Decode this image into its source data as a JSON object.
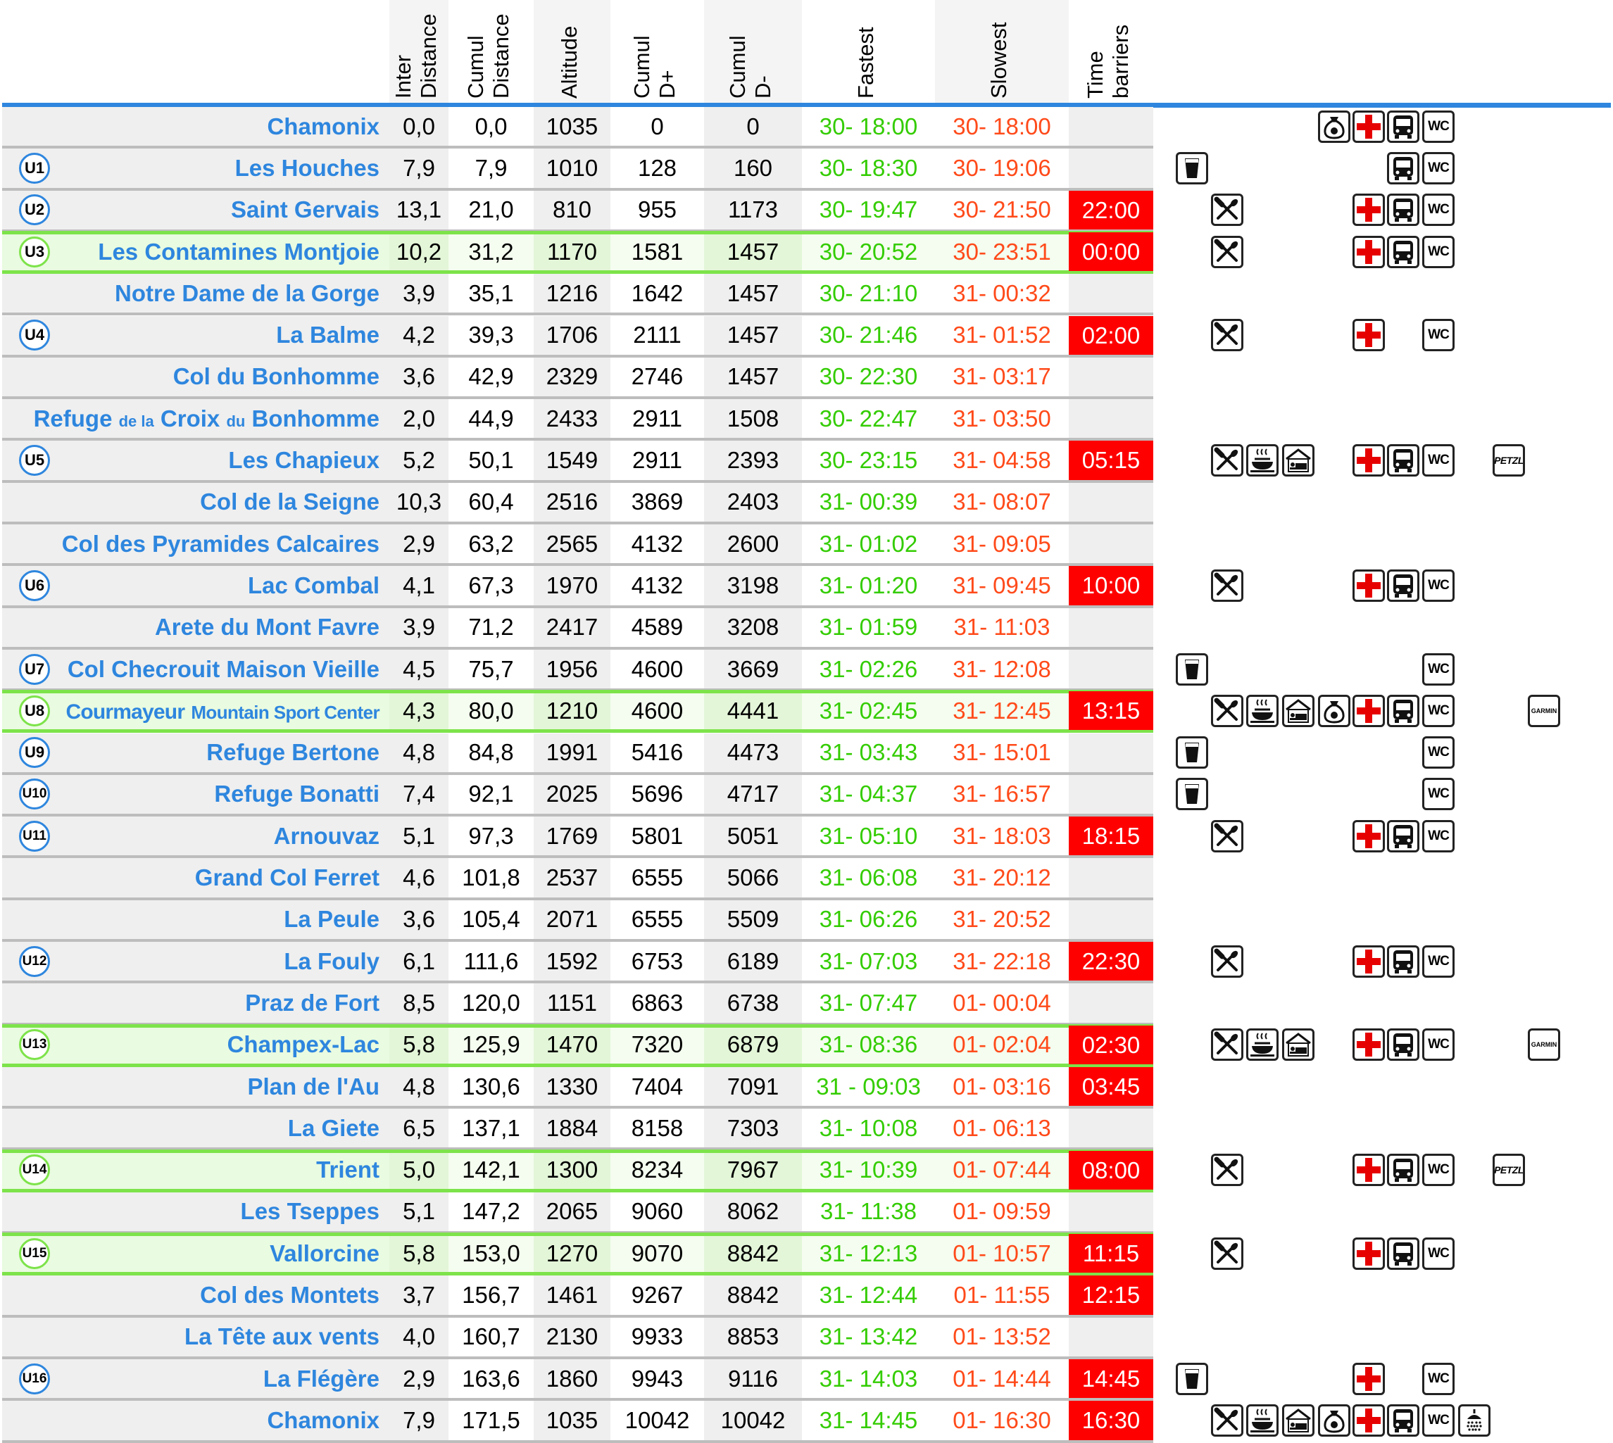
{
  "headers": {
    "inter": [
      "Inter",
      "Distance"
    ],
    "cumul_dist": [
      "Cumul",
      "Distance"
    ],
    "altitude": [
      "Altitude"
    ],
    "cumul_dplus": [
      "Cumul",
      "D+"
    ],
    "cumul_dminus": [
      "Cumul",
      "D-"
    ],
    "fastest": [
      "Fastest"
    ],
    "slowest": [
      "Slowest"
    ],
    "barriers": [
      "Time",
      "barriers"
    ]
  },
  "colors": {
    "place_text": "#2e86de",
    "fastest_text": "#33cc00",
    "slowest_text": "#ff4a1a",
    "barrier_bg": "#ff0000",
    "green_line": "#7de34a"
  },
  "rows": [
    {
      "badge": "",
      "place": "Chamonix",
      "inter": "0,0",
      "cumul": "0,0",
      "alt": "1035",
      "dplus": "0",
      "dminus": "0",
      "fast": "30- 18:00",
      "slow": "30- 18:00",
      "barrier": "",
      "services": [
        "bag-icon",
        "first-aid-icon",
        "bus-icon",
        "wc-icon"
      ],
      "sponsor": ""
    },
    {
      "badge": "U1",
      "place": "Les Houches",
      "inter": "7,9",
      "cumul": "7,9",
      "alt": "1010",
      "dplus": "128",
      "dminus": "160",
      "fast": "30- 18:30",
      "slow": "30- 19:06",
      "barrier": "",
      "services": [
        "drink-icon",
        "bus-icon",
        "wc-icon"
      ],
      "sponsor": ""
    },
    {
      "badge": "U2",
      "place": "Saint Gervais",
      "inter": "13,1",
      "cumul": "21,0",
      "alt": "810",
      "dplus": "955",
      "dminus": "1173",
      "fast": "30- 19:47",
      "slow": "30- 21:50",
      "barrier": "22:00",
      "services": [
        "food-icon",
        "first-aid-icon",
        "bus-icon",
        "wc-icon"
      ],
      "sponsor": ""
    },
    {
      "badge": "U3",
      "place": "Les Contamines Montjoie",
      "inter": "10,2",
      "cumul": "31,2",
      "alt": "1170",
      "dplus": "1581",
      "dminus": "1457",
      "fast": "30- 20:52",
      "slow": "30- 23:51",
      "barrier": "00:00",
      "services": [
        "food-icon",
        "first-aid-icon",
        "bus-icon",
        "wc-icon"
      ],
      "sponsor": "",
      "green": true
    },
    {
      "badge": "",
      "place": "Notre Dame de la Gorge",
      "inter": "3,9",
      "cumul": "35,1",
      "alt": "1216",
      "dplus": "1642",
      "dminus": "1457",
      "fast": "30- 21:10",
      "slow": "31- 00:32",
      "barrier": "",
      "services": [],
      "sponsor": ""
    },
    {
      "badge": "U4",
      "place": "La Balme",
      "inter": "4,2",
      "cumul": "39,3",
      "alt": "1706",
      "dplus": "2111",
      "dminus": "1457",
      "fast": "30- 21:46",
      "slow": "31- 01:52",
      "barrier": "02:00",
      "services": [
        "food-icon",
        "first-aid-icon",
        "wc-icon"
      ],
      "sponsor": ""
    },
    {
      "badge": "",
      "place": "Col du Bonhomme",
      "inter": "3,6",
      "cumul": "42,9",
      "alt": "2329",
      "dplus": "2746",
      "dminus": "1457",
      "fast": "30- 22:30",
      "slow": "31- 03:17",
      "barrier": "",
      "services": [],
      "sponsor": ""
    },
    {
      "badge": "",
      "place": "Refuge de la Croix du Bonhomme",
      "inter": "2,0",
      "cumul": "44,9",
      "alt": "2433",
      "dplus": "2911",
      "dminus": "1508",
      "fast": "30- 22:47",
      "slow": "31- 03:50",
      "barrier": "",
      "services": [],
      "sponsor": ""
    },
    {
      "badge": "U5",
      "place": "Les Chapieux",
      "inter": "5,2",
      "cumul": "50,1",
      "alt": "1549",
      "dplus": "2911",
      "dminus": "2393",
      "fast": "30- 23:15",
      "slow": "31- 04:58",
      "barrier": "05:15",
      "services": [
        "food-icon",
        "hot-meal-icon",
        "sleep-icon",
        "first-aid-icon",
        "bus-icon",
        "wc-icon"
      ],
      "sponsor": "PETZL"
    },
    {
      "badge": "",
      "place": "Col de la Seigne",
      "inter": "10,3",
      "cumul": "60,4",
      "alt": "2516",
      "dplus": "3869",
      "dminus": "2403",
      "fast": "31- 00:39",
      "slow": "31- 08:07",
      "barrier": "",
      "services": [],
      "sponsor": ""
    },
    {
      "badge": "",
      "place": "Col des Pyramides Calcaires",
      "inter": "2,9",
      "cumul": "63,2",
      "alt": "2565",
      "dplus": "4132",
      "dminus": "2600",
      "fast": "31- 01:02",
      "slow": "31- 09:05",
      "barrier": "",
      "services": [],
      "sponsor": ""
    },
    {
      "badge": "U6",
      "place": "Lac Combal",
      "inter": "4,1",
      "cumul": "67,3",
      "alt": "1970",
      "dplus": "4132",
      "dminus": "3198",
      "fast": "31- 01:20",
      "slow": "31- 09:45",
      "barrier": "10:00",
      "services": [
        "food-icon",
        "first-aid-icon",
        "bus-icon",
        "wc-icon"
      ],
      "sponsor": ""
    },
    {
      "badge": "",
      "place": "Arete du Mont Favre",
      "inter": "3,9",
      "cumul": "71,2",
      "alt": "2417",
      "dplus": "4589",
      "dminus": "3208",
      "fast": "31- 01:59",
      "slow": "31- 11:03",
      "barrier": "",
      "services": [],
      "sponsor": ""
    },
    {
      "badge": "U7",
      "place": "Col Checrouit Maison Vieille",
      "inter": "4,5",
      "cumul": "75,7",
      "alt": "1956",
      "dplus": "4600",
      "dminus": "3669",
      "fast": "31- 02:26",
      "slow": "31- 12:08",
      "barrier": "",
      "services": [
        "drink-icon",
        "wc-icon"
      ],
      "sponsor": ""
    },
    {
      "badge": "U8",
      "place": "Courmayeur Mountain Sport Center",
      "inter": "4,3",
      "cumul": "80,0",
      "alt": "1210",
      "dplus": "4600",
      "dminus": "4441",
      "fast": "31- 02:45",
      "slow": "31- 12:45",
      "barrier": "13:15",
      "services": [
        "food-icon",
        "hot-meal-icon",
        "sleep-icon",
        "bag-icon",
        "first-aid-icon",
        "bus-icon",
        "wc-icon"
      ],
      "sponsor": "GARMIN",
      "green": true
    },
    {
      "badge": "U9",
      "place": "Refuge Bertone",
      "inter": "4,8",
      "cumul": "84,8",
      "alt": "1991",
      "dplus": "5416",
      "dminus": "4473",
      "fast": "31- 03:43",
      "slow": "31- 15:01",
      "barrier": "",
      "services": [
        "drink-icon",
        "wc-icon"
      ],
      "sponsor": ""
    },
    {
      "badge": "U10",
      "place": "Refuge Bonatti",
      "inter": "7,4",
      "cumul": "92,1",
      "alt": "2025",
      "dplus": "5696",
      "dminus": "4717",
      "fast": "31- 04:37",
      "slow": "31- 16:57",
      "barrier": "",
      "services": [
        "drink-icon",
        "wc-icon"
      ],
      "sponsor": ""
    },
    {
      "badge": "U11",
      "place": "Arnouvaz",
      "inter": "5,1",
      "cumul": "97,3",
      "alt": "1769",
      "dplus": "5801",
      "dminus": "5051",
      "fast": "31- 05:10",
      "slow": "31- 18:03",
      "barrier": "18:15",
      "services": [
        "food-icon",
        "first-aid-icon",
        "bus-icon",
        "wc-icon"
      ],
      "sponsor": ""
    },
    {
      "badge": "",
      "place": "Grand Col Ferret",
      "inter": "4,6",
      "cumul": "101,8",
      "alt": "2537",
      "dplus": "6555",
      "dminus": "5066",
      "fast": "31- 06:08",
      "slow": "31- 20:12",
      "barrier": "",
      "services": [],
      "sponsor": ""
    },
    {
      "badge": "",
      "place": "La Peule",
      "inter": "3,6",
      "cumul": "105,4",
      "alt": "2071",
      "dplus": "6555",
      "dminus": "5509",
      "fast": "31- 06:26",
      "slow": "31- 20:52",
      "barrier": "",
      "services": [],
      "sponsor": ""
    },
    {
      "badge": "U12",
      "place": "La Fouly",
      "inter": "6,1",
      "cumul": "111,6",
      "alt": "1592",
      "dplus": "6753",
      "dminus": "6189",
      "fast": "31- 07:03",
      "slow": "31- 22:18",
      "barrier": "22:30",
      "services": [
        "food-icon",
        "first-aid-icon",
        "bus-icon",
        "wc-icon"
      ],
      "sponsor": ""
    },
    {
      "badge": "",
      "place": "Praz de Fort",
      "inter": "8,5",
      "cumul": "120,0",
      "alt": "1151",
      "dplus": "6863",
      "dminus": "6738",
      "fast": "31- 07:47",
      "slow": "01- 00:04",
      "barrier": "",
      "services": [],
      "sponsor": ""
    },
    {
      "badge": "U13",
      "place": "Champex-Lac",
      "inter": "5,8",
      "cumul": "125,9",
      "alt": "1470",
      "dplus": "7320",
      "dminus": "6879",
      "fast": "31- 08:36",
      "slow": "01- 02:04",
      "barrier": "02:30",
      "services": [
        "food-icon",
        "hot-meal-icon",
        "sleep-icon",
        "first-aid-icon",
        "bus-icon",
        "wc-icon"
      ],
      "sponsor": "GARMIN",
      "green": true
    },
    {
      "badge": "",
      "place": "Plan de l'Au",
      "inter": "4,8",
      "cumul": "130,6",
      "alt": "1330",
      "dplus": "7404",
      "dminus": "7091",
      "fast": "31 - 09:03",
      "slow": "01- 03:16",
      "barrier": "03:45",
      "services": [],
      "sponsor": ""
    },
    {
      "badge": "",
      "place": "La Giete",
      "inter": "6,5",
      "cumul": "137,1",
      "alt": "1884",
      "dplus": "8158",
      "dminus": "7303",
      "fast": "31- 10:08",
      "slow": "01- 06:13",
      "barrier": "",
      "services": [],
      "sponsor": ""
    },
    {
      "badge": "U14",
      "place": "Trient",
      "inter": "5,0",
      "cumul": "142,1",
      "alt": "1300",
      "dplus": "8234",
      "dminus": "7967",
      "fast": "31- 10:39",
      "slow": "01- 07:44",
      "barrier": "08:00",
      "services": [
        "food-icon",
        "first-aid-icon",
        "bus-icon",
        "wc-icon"
      ],
      "sponsor": "PETZL",
      "green": true
    },
    {
      "badge": "",
      "place": "Les Tseppes",
      "inter": "5,1",
      "cumul": "147,2",
      "alt": "2065",
      "dplus": "9060",
      "dminus": "8062",
      "fast": "31- 11:38",
      "slow": "01- 09:59",
      "barrier": "",
      "services": [],
      "sponsor": ""
    },
    {
      "badge": "U15",
      "place": "Vallorcine",
      "inter": "5,8",
      "cumul": "153,0",
      "alt": "1270",
      "dplus": "9070",
      "dminus": "8842",
      "fast": "31- 12:13",
      "slow": "01- 10:57",
      "barrier": "11:15",
      "services": [
        "food-icon",
        "first-aid-icon",
        "bus-icon",
        "wc-icon"
      ],
      "sponsor": "",
      "green": true
    },
    {
      "badge": "",
      "place": "Col des Montets",
      "inter": "3,7",
      "cumul": "156,7",
      "alt": "1461",
      "dplus": "9267",
      "dminus": "8842",
      "fast": "31- 12:44",
      "slow": "01- 11:55",
      "barrier": "12:15",
      "services": [],
      "sponsor": ""
    },
    {
      "badge": "",
      "place": "La Tête aux vents",
      "inter": "4,0",
      "cumul": "160,7",
      "alt": "2130",
      "dplus": "9933",
      "dminus": "8853",
      "fast": "31- 13:42",
      "slow": "01- 13:52",
      "barrier": "",
      "services": [],
      "sponsor": ""
    },
    {
      "badge": "U16",
      "place": "La Flégère",
      "inter": "2,9",
      "cumul": "163,6",
      "alt": "1860",
      "dplus": "9943",
      "dminus": "9116",
      "fast": "31- 14:03",
      "slow": "01- 14:44",
      "barrier": "14:45",
      "services": [
        "drink-icon",
        "first-aid-icon",
        "wc-icon"
      ],
      "sponsor": ""
    },
    {
      "badge": "",
      "place": "Chamonix",
      "inter": "7,9",
      "cumul": "171,5",
      "alt": "1035",
      "dplus": "10042",
      "dminus": "10042",
      "fast": "31- 14:45",
      "slow": "01- 16:30",
      "barrier": "16:30",
      "services": [
        "food-icon",
        "hot-meal-icon",
        "sleep-icon",
        "bag-icon",
        "first-aid-icon",
        "bus-icon",
        "wc-icon",
        "shower-icon"
      ],
      "sponsor": ""
    }
  ],
  "service_labels": {
    "wc": "WC"
  }
}
